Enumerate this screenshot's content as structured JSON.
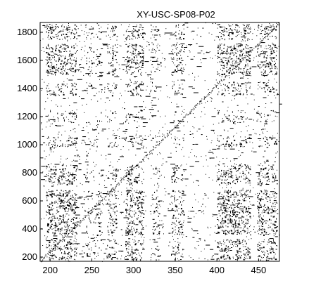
{
  "chart_data": {
    "type": "scatter",
    "title": "XY-USC-SP08-P02",
    "xlabel": "",
    "ylabel": "",
    "xlim": [
      188,
      475
    ],
    "ylim": [
      170,
      1870
    ],
    "x_ticks": [
      200,
      250,
      300,
      350,
      400,
      450
    ],
    "y_ticks": [
      200,
      400,
      600,
      800,
      1000,
      1200,
      1400,
      1600,
      1800
    ],
    "x_tick_labels": [
      "200",
      "250",
      "300",
      "350",
      "400",
      "450"
    ],
    "y_tick_labels": [
      "200",
      "400",
      "600",
      "800",
      "1000",
      "1200",
      "1400",
      "1600",
      "1800"
    ],
    "grid": false,
    "marker": "dot",
    "marker_color": "#000000",
    "description_of_pattern": "dense recurrence-plot style point cloud",
    "x_bands": [
      {
        "from": 195,
        "to": 232,
        "density": 0.55
      },
      {
        "from": 240,
        "to": 262,
        "density": 0.15
      },
      {
        "from": 268,
        "to": 280,
        "density": 0.35
      },
      {
        "from": 290,
        "to": 312,
        "density": 0.5
      },
      {
        "from": 320,
        "to": 332,
        "density": 0.2
      },
      {
        "from": 345,
        "to": 360,
        "density": 0.35
      },
      {
        "from": 400,
        "to": 440,
        "density": 0.55
      },
      {
        "from": 448,
        "to": 472,
        "density": 0.45
      }
    ],
    "y_bands": [
      {
        "from": 180,
        "to": 330,
        "density": 0.5
      },
      {
        "from": 360,
        "to": 680,
        "density": 0.6
      },
      {
        "from": 720,
        "to": 860,
        "density": 0.45
      },
      {
        "from": 980,
        "to": 1060,
        "density": 0.35
      },
      {
        "from": 1150,
        "to": 1250,
        "density": 0.2
      },
      {
        "from": 1350,
        "to": 1450,
        "density": 0.35
      },
      {
        "from": 1500,
        "to": 1720,
        "density": 0.55
      },
      {
        "from": 1750,
        "to": 1860,
        "density": 0.5
      }
    ]
  }
}
